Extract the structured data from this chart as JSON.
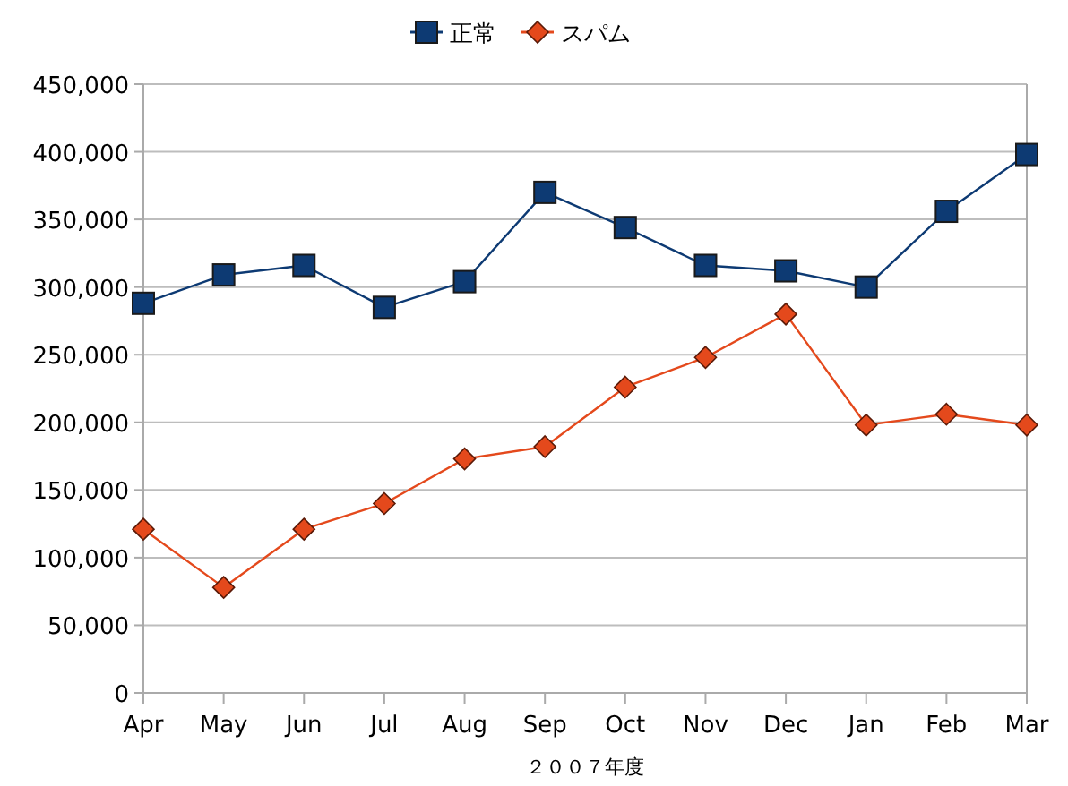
{
  "chart_data": {
    "type": "line",
    "xlabel": "２００７年度",
    "categories": [
      "Apr",
      "May",
      "Jun",
      "Jul",
      "Aug",
      "Sep",
      "Oct",
      "Nov",
      "Dec",
      "Jan",
      "Feb",
      "Mar"
    ],
    "series": [
      {
        "name": "正常",
        "color": "#0d3a73",
        "marker": "square",
        "values": [
          288000,
          309000,
          316000,
          285000,
          304000,
          370000,
          344000,
          316000,
          312000,
          300000,
          356000,
          398000
        ]
      },
      {
        "name": "スパム",
        "color": "#e4491c",
        "marker": "diamond",
        "values": [
          121000,
          78000,
          121000,
          140000,
          173000,
          182000,
          226000,
          248000,
          280000,
          198000,
          206000,
          198000
        ]
      }
    ],
    "ylim": [
      0,
      450000
    ],
    "yticks": [
      {
        "value": 0,
        "label": "0"
      },
      {
        "value": 50000,
        "label": "50,000"
      },
      {
        "value": 100000,
        "label": "100,000"
      },
      {
        "value": 150000,
        "label": "150,000"
      },
      {
        "value": 200000,
        "label": "200,000"
      },
      {
        "value": 250000,
        "label": "250,000"
      },
      {
        "value": 300000,
        "label": "300,000"
      },
      {
        "value": 350000,
        "label": "350,000"
      },
      {
        "value": 400000,
        "label": "400,000"
      },
      {
        "value": 450000,
        "label": "450,000"
      }
    ],
    "grid": "y",
    "legend": "top",
    "line_style": "solid"
  }
}
